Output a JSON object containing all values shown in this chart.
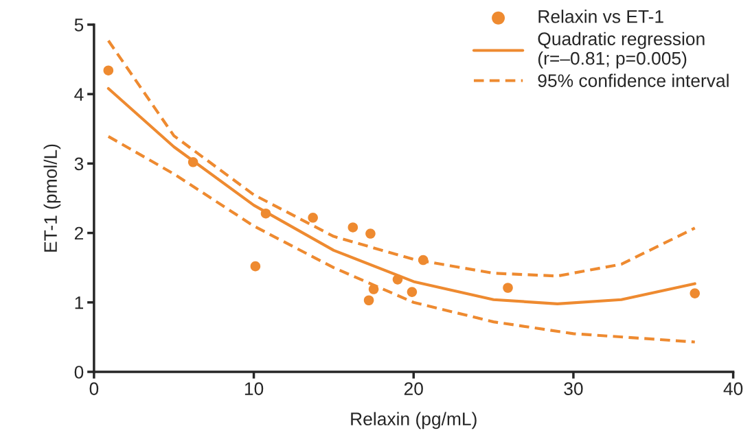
{
  "chart_data": {
    "type": "scatter",
    "xlabel": "Relaxin (pg/mL)",
    "ylabel": "ET-1 (pmol/L)",
    "xlim": [
      0,
      40
    ],
    "ylim": [
      0,
      5
    ],
    "xticks": [
      0,
      10,
      20,
      30,
      40
    ],
    "yticks": [
      0,
      1,
      2,
      3,
      4,
      5
    ],
    "grid": false,
    "legend": "top right",
    "series": [
      {
        "name": "Relaxin vs ET-1",
        "marker": "circle",
        "color": "#ee8a30",
        "x": [
          0.9,
          6.2,
          10.1,
          10.75,
          13.7,
          16.2,
          17.2,
          17.3,
          17.5,
          19.0,
          19.9,
          20.6,
          25.9,
          37.6
        ],
        "values": [
          4.34,
          3.02,
          1.52,
          2.28,
          2.22,
          2.08,
          1.03,
          1.99,
          1.19,
          1.33,
          1.15,
          1.61,
          1.21,
          1.13
        ]
      },
      {
        "name": "Quadratic regression\n(r=–0.81; p=0.005)",
        "type": "line",
        "line_style": "solid",
        "color": "#ee8a30",
        "x": [
          0.9,
          5,
          10,
          15,
          20,
          25,
          29,
          33,
          37.6
        ],
        "values": [
          4.08,
          3.24,
          2.4,
          1.75,
          1.3,
          1.04,
          0.98,
          1.04,
          1.27
        ]
      },
      {
        "name": "95% confidence interval",
        "type": "line",
        "line_style": "dashed",
        "color": "#ee8a30",
        "x": [
          0.9,
          5,
          10,
          15,
          20,
          25,
          29,
          33,
          37.6
        ],
        "values": [
          4.77,
          3.4,
          2.55,
          1.95,
          1.62,
          1.42,
          1.38,
          1.55,
          2.07
        ]
      },
      {
        "type": "line",
        "line_style": "dashed",
        "color": "#ee8a30",
        "x": [
          0.9,
          5,
          10,
          15,
          20,
          25,
          30,
          37.6
        ],
        "values": [
          3.39,
          2.85,
          2.1,
          1.5,
          1.0,
          0.72,
          0.55,
          0.43
        ]
      }
    ]
  }
}
